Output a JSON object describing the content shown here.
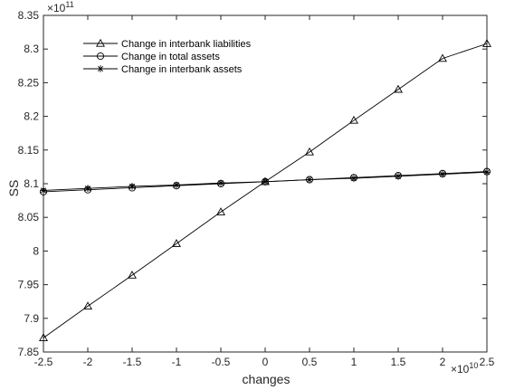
{
  "chart_data": {
    "type": "line",
    "x": [
      -25000000000,
      -20000000000,
      -15000000000,
      -10000000000,
      -5000000000,
      0,
      5000000000,
      10000000000,
      15000000000,
      20000000000,
      25000000000
    ],
    "x_tick_labels": [
      "-2.5",
      "-2",
      "-1.5",
      "-1",
      "-0.5",
      "0",
      "0.5",
      "1",
      "1.5",
      "2",
      "2.5"
    ],
    "x_multiplier": {
      "base": "×10",
      "exponent": "10"
    },
    "y_tick_labels": [
      "7.85",
      "7.9",
      "7.95",
      "8",
      "8.05",
      "8.1",
      "8.15",
      "8.2",
      "8.25",
      "8.3",
      "8.35"
    ],
    "y_multiplier": {
      "base": "×10",
      "exponent": "11"
    },
    "xlabel": "changes",
    "ylabel": "SS",
    "xlim": [
      -25000000000,
      25000000000
    ],
    "ylim": [
      785000000000,
      835000000000
    ],
    "grid": false,
    "legend_position": "top-left",
    "series": [
      {
        "name": "Change in interbank liabilities",
        "marker": "triangle",
        "values": [
          787100000000,
          791800000000,
          796400000000,
          801100000000,
          805800000000,
          810300000000,
          814700000000,
          819400000000,
          824000000000,
          828600000000,
          830800000000
        ]
      },
      {
        "name": "Change in total assets",
        "marker": "circle",
        "values": [
          808800000000,
          809100000000,
          809400000000,
          809700000000,
          810000000000,
          810300000000,
          810600000000,
          810900000000,
          811200000000,
          811500000000,
          811800000000
        ]
      },
      {
        "name": "Change in interbank assets",
        "marker": "star",
        "values": [
          809000000000,
          809300000000,
          809600000000,
          809800000000,
          810100000000,
          810300000000,
          810600000000,
          810800000000,
          811100000000,
          811400000000,
          811700000000
        ]
      }
    ],
    "colors": {
      "line": "#000000",
      "axis": "#262626",
      "background": "#ffffff"
    }
  }
}
